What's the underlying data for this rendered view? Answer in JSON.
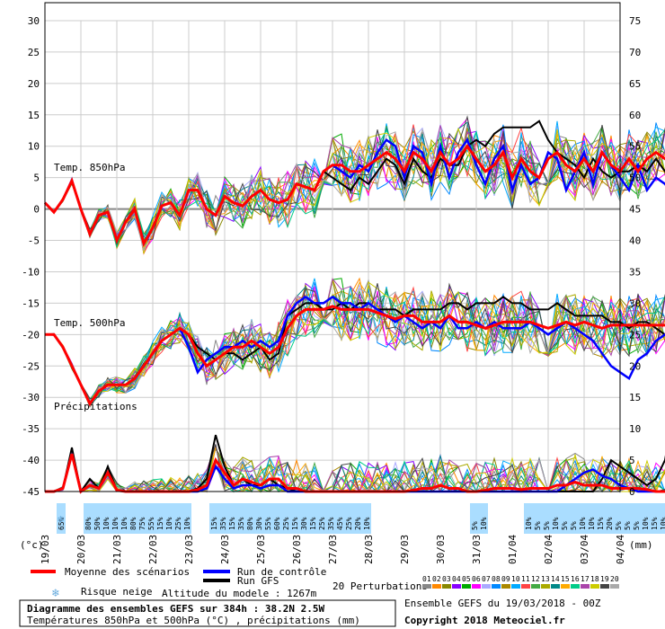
{
  "chart_data": {
    "type": "line",
    "title": "Diagramme des ensembles GEFS sur 384h : 38.2N 2.5W",
    "subtitle": "Températures 850hPa et 500hPa (°C) , précipitations (mm)",
    "left_axis": {
      "unit_label": "(°c)",
      "ticks": [
        30,
        25,
        20,
        15,
        10,
        5,
        0,
        -5,
        -10,
        -15,
        -20,
        -25,
        -30,
        -35,
        -40,
        -45
      ],
      "range": [
        -45,
        30
      ]
    },
    "right_axis": {
      "unit_label": "(mm)",
      "ticks": [
        75,
        70,
        65,
        60,
        55,
        50,
        45,
        40,
        35,
        30,
        25,
        20,
        15,
        10,
        5,
        0
      ],
      "range": [
        0,
        75
      ]
    },
    "x_labels": [
      "19/03",
      "20/03",
      "21/03",
      "22/03",
      "23/03",
      "24/03",
      "25/03",
      "26/03",
      "27/03",
      "28/03",
      "29/03",
      "30/03",
      "31/03",
      "01/04",
      "02/04",
      "03/04",
      "04/04"
    ],
    "section_labels": [
      "Temp. 850hPa",
      "Temp. 500hPa",
      "Précipitations"
    ],
    "snow_risk": {
      "start_day": 0.25,
      "step_days": 0.25,
      "values": [
        "",
        "65%",
        "",
        "",
        "80%",
        "50%",
        "10%",
        "10%",
        "10%",
        "80%",
        "75%",
        "55%",
        "15%",
        "10%",
        "25%",
        "10%",
        "",
        "",
        "15%",
        "35%",
        "15%",
        "35%",
        "80%",
        "30%",
        "55%",
        "60%",
        "25%",
        "15%",
        "30%",
        "15%",
        "25%",
        "35%",
        "45%",
        "25%",
        "20%",
        "10%",
        "",
        "",
        "",
        "",
        "",
        "",
        "",
        "",
        "",
        "",
        "",
        "5%",
        "10%",
        "",
        "",
        "",
        "",
        "10%",
        "5%",
        "5%",
        "10%",
        "5%",
        "5%",
        "10%",
        "10%",
        "15%",
        "20%",
        "5%",
        "5%",
        "5%",
        "10%",
        "15%",
        "10%",
        "10%",
        "10%",
        ""
      ]
    },
    "series": {
      "t850": {
        "step_days": 0.25,
        "mean": [
          1,
          -0.5,
          1.5,
          4.5,
          0,
          -4,
          -1,
          -0.5,
          -5,
          -2,
          0,
          -5.5,
          -3,
          0.5,
          1,
          -1,
          3,
          3,
          0,
          -1,
          2,
          1,
          0.5,
          2,
          3,
          1.5,
          1,
          1.5,
          4,
          3.5,
          3,
          6,
          7,
          7,
          6,
          6,
          7,
          8,
          9,
          8,
          6,
          9,
          8,
          6,
          9,
          7,
          8,
          10,
          8,
          6,
          7,
          9,
          5,
          8,
          6,
          5,
          8,
          9,
          7,
          6,
          8,
          6,
          9,
          7,
          6,
          8,
          6,
          8,
          9,
          8,
          7
        ],
        "control": [
          1,
          -0.5,
          1.5,
          4.5,
          0,
          -4,
          -1,
          -0.5,
          -5,
          -2,
          0,
          -5.5,
          -3,
          0.5,
          1,
          -1,
          3,
          3,
          0,
          -1,
          2,
          1,
          0.5,
          2,
          3,
          1.5,
          1,
          1.5,
          4,
          3.5,
          3,
          6,
          7,
          6,
          5,
          7,
          6,
          9,
          11,
          10,
          5,
          10,
          9,
          4,
          10,
          5,
          9,
          11,
          7,
          4,
          8,
          10,
          3,
          7,
          4,
          5,
          9,
          8,
          3,
          6,
          9,
          4,
          9,
          7,
          5,
          3,
          7,
          3,
          5,
          4,
          2
        ],
        "gfs": [
          1,
          -0.5,
          1.5,
          4.5,
          0,
          -4,
          -1,
          -0.5,
          -5,
          -2,
          0,
          -5.5,
          -3,
          0.5,
          1,
          -1,
          3,
          3,
          0,
          -1,
          2,
          1,
          0.5,
          2,
          3,
          1.5,
          1,
          1.5,
          4,
          3.5,
          3,
          6,
          5,
          4,
          3,
          5,
          4,
          6,
          8,
          7,
          4,
          8,
          6,
          5,
          8,
          7,
          7,
          10,
          11,
          10,
          12,
          13,
          13,
          13,
          13,
          14,
          11,
          9,
          8,
          7,
          5,
          8,
          6,
          5,
          6,
          6,
          7,
          6,
          8,
          6,
          5
        ]
      },
      "t500": {
        "step_days": 0.25,
        "mean": [
          -20,
          -20,
          -22,
          -25,
          -28,
          -31,
          -29,
          -28,
          -28,
          -28,
          -27,
          -25,
          -23,
          -21,
          -20,
          -19,
          -20,
          -23,
          -25,
          -24,
          -23,
          -22,
          -22,
          -21,
          -22,
          -23,
          -22,
          -19,
          -17,
          -16,
          -16,
          -16,
          -15.5,
          -16,
          -16,
          -16,
          -16,
          -16.5,
          -17,
          -17.5,
          -17,
          -17,
          -18,
          -18,
          -18,
          -17,
          -18,
          -18,
          -18.5,
          -19,
          -18.5,
          -18,
          -18,
          -18,
          -18,
          -18.5,
          -19,
          -18.5,
          -18,
          -18.5,
          -18,
          -18.5,
          -19,
          -18.5,
          -18.5,
          -18.5,
          -18.5,
          -18.5,
          -18.5,
          -18.5,
          -18.5
        ],
        "control": [
          -20,
          -20,
          -22,
          -25,
          -28,
          -31,
          -29,
          -28,
          -28,
          -28,
          -27,
          -25,
          -23,
          -21,
          -20,
          -19,
          -22,
          -26,
          -24,
          -23,
          -22,
          -22,
          -21,
          -22,
          -21,
          -22,
          -21,
          -17,
          -15,
          -14,
          -15,
          -15,
          -14,
          -15,
          -15,
          -16,
          -15,
          -16,
          -17,
          -18,
          -17,
          -18,
          -19,
          -18,
          -19,
          -17,
          -19,
          -19,
          -18,
          -19,
          -18,
          -19,
          -19,
          -19,
          -18,
          -19,
          -20,
          -19,
          -18,
          -19,
          -20,
          -21,
          -23,
          -25,
          -26,
          -27,
          -24,
          -23,
          -21,
          -20,
          -20.5
        ],
        "gfs": [
          -20,
          -20,
          -22,
          -25,
          -28,
          -31,
          -29,
          -28,
          -28,
          -28,
          -27,
          -25,
          -23,
          -21,
          -20,
          -19,
          -20,
          -22,
          -23,
          -24,
          -23,
          -23,
          -24,
          -23,
          -22,
          -24,
          -23,
          -17,
          -16,
          -15,
          -15,
          -16,
          -16,
          -15,
          -16,
          -15,
          -15,
          -16,
          -16,
          -16,
          -17,
          -16,
          -16,
          -16,
          -16,
          -15,
          -15,
          -16,
          -15,
          -15,
          -15,
          -14,
          -15,
          -15,
          -16,
          -16,
          -16,
          -15,
          -16,
          -17,
          -17,
          -17,
          -17,
          -18,
          -18,
          -19,
          -18,
          -18,
          -19,
          -20,
          -20.5
        ]
      },
      "precip": {
        "step_days": 0.25,
        "mean": [
          0,
          0,
          0.5,
          6,
          0,
          1,
          0.5,
          3,
          0.2,
          0,
          0,
          0,
          0,
          0,
          0,
          0,
          0,
          0.3,
          1,
          5,
          3,
          1,
          2,
          1.5,
          1,
          2,
          2,
          0.5,
          0.5,
          0,
          0,
          0,
          0,
          0,
          0,
          0,
          0,
          0,
          0,
          0,
          0,
          0.2,
          0.5,
          0.5,
          1,
          0.5,
          0.5,
          0,
          0,
          0.2,
          0.5,
          0.5,
          0.5,
          0.3,
          0.5,
          0.5,
          0.5,
          1,
          1,
          1.5,
          1,
          1,
          1,
          0.5,
          0.5,
          0.5,
          0.5,
          0.3,
          0,
          0,
          0
        ],
        "control": [
          0,
          0,
          0.5,
          6,
          0,
          1,
          0.5,
          3,
          0.2,
          0,
          0,
          0,
          0,
          0,
          0,
          0,
          0,
          0,
          0.5,
          4,
          2,
          0.5,
          1,
          1,
          0.5,
          1,
          1,
          0,
          0,
          0,
          0,
          0,
          0,
          0,
          0,
          0,
          0,
          0,
          0,
          0,
          0,
          0,
          0,
          0,
          0,
          0,
          0,
          0,
          0,
          0,
          0,
          0,
          0,
          0,
          0,
          0,
          0,
          0,
          1,
          2,
          3,
          3.5,
          2.5,
          2,
          1,
          0.5,
          0,
          0,
          0,
          0,
          0
        ],
        "gfs": [
          0,
          0,
          0.5,
          7,
          0,
          2,
          0.5,
          4,
          0.2,
          0,
          0,
          0,
          0,
          0,
          0,
          0,
          0,
          0.5,
          2,
          9,
          4,
          1,
          2,
          1,
          1,
          2,
          1,
          0.5,
          0,
          0,
          0,
          0,
          0,
          0,
          0,
          0,
          0,
          0,
          0,
          0,
          0,
          0,
          0,
          0,
          0,
          0,
          0,
          0,
          0,
          0,
          0,
          0,
          0,
          0,
          0,
          0,
          0,
          0,
          0,
          0,
          0,
          0,
          2,
          5,
          4,
          3,
          2,
          1,
          2,
          5,
          13
        ]
      }
    },
    "legend": {
      "mean": "Moyenne des scénarios",
      "control": "Run de contrôle",
      "gfs": "Run GFS",
      "snow": "Risque neige",
      "altitude": "Altitude du modele : 1267m",
      "perturbations": "20 Perturbations",
      "perturbation_ids": [
        "01",
        "02",
        "03",
        "04",
        "05",
        "06",
        "07",
        "08",
        "09",
        "10",
        "11",
        "12",
        "13",
        "14",
        "15",
        "16",
        "17",
        "18",
        "19",
        "20"
      ],
      "perturbation_colors": [
        "#888888",
        "#ff8800",
        "#888800",
        "#8800ff",
        "#00aa00",
        "#ff00ff",
        "#aaaaff",
        "#0088ff",
        "#aa8800",
        "#00aaff",
        "#ff4444",
        "#44aa44",
        "#aaaa00",
        "#008888",
        "#ffaa00",
        "#00cc88",
        "#aa44aa",
        "#cccc00",
        "#444444",
        "#aaaaaa"
      ]
    },
    "colors": {
      "mean": "#ff0000",
      "control": "#0000ff",
      "gfs": "#000000",
      "snow": "#aaddff",
      "grid": "#cccccc",
      "zero_line": "#888888"
    },
    "footer": {
      "ensemble": "Ensemble GEFS du 19/03/2018 - 00Z",
      "copyright": "Copyright 2018 Meteociel.fr"
    }
  }
}
